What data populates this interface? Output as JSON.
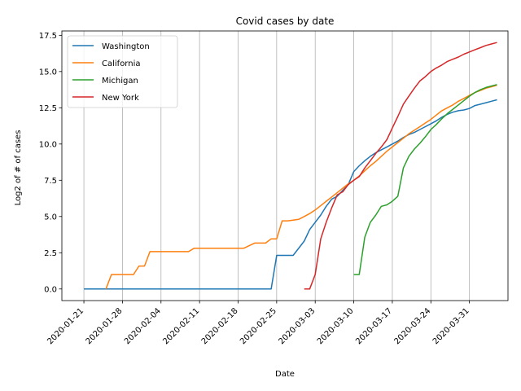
{
  "chart_data": {
    "type": "line",
    "title": "Covid cases by date",
    "xlabel": "Date",
    "ylabel": "Log2 of # of cases",
    "x_tick_labels": [
      "2020-01-21",
      "2020-01-28",
      "2020-02-04",
      "2020-02-11",
      "2020-02-18",
      "2020-02-25",
      "2020-03-03",
      "2020-03-10",
      "2020-03-17",
      "2020-03-24",
      "2020-03-31"
    ],
    "y_ticks": [
      0.0,
      2.5,
      5.0,
      7.5,
      10.0,
      12.5,
      15.0,
      17.5
    ],
    "y_tick_labels": [
      "0.0",
      "2.5",
      "5.0",
      "7.5",
      "10.0",
      "12.5",
      "15.0",
      "17.5"
    ],
    "xlim": [
      "2020-01-17",
      "2020-04-07"
    ],
    "ylim": [
      -0.8,
      17.8
    ],
    "grid": "vertical",
    "legend_position": "top-left",
    "series": [
      {
        "name": "Washington",
        "color": "#1f77b4",
        "points": [
          [
            "2020-01-21",
            0
          ],
          [
            "2020-02-24",
            0
          ],
          [
            "2020-02-25",
            2.32
          ],
          [
            "2020-02-28",
            2.32
          ],
          [
            "2020-03-01",
            3.3
          ],
          [
            "2020-03-02",
            4.1
          ],
          [
            "2020-03-03",
            4.6
          ],
          [
            "2020-03-04",
            5.1
          ],
          [
            "2020-03-05",
            5.7
          ],
          [
            "2020-03-06",
            6.2
          ],
          [
            "2020-03-07",
            6.4
          ],
          [
            "2020-03-08",
            6.8
          ],
          [
            "2020-03-09",
            7.2
          ],
          [
            "2020-03-10",
            8.1
          ],
          [
            "2020-03-11",
            8.5
          ],
          [
            "2020-03-12",
            8.85
          ],
          [
            "2020-03-13",
            9.15
          ],
          [
            "2020-03-14",
            9.4
          ],
          [
            "2020-03-15",
            9.6
          ],
          [
            "2020-03-16",
            9.8
          ],
          [
            "2020-03-17",
            10.0
          ],
          [
            "2020-03-18",
            10.2
          ],
          [
            "2020-03-19",
            10.45
          ],
          [
            "2020-03-20",
            10.65
          ],
          [
            "2020-03-21",
            10.8
          ],
          [
            "2020-03-22",
            11.0
          ],
          [
            "2020-03-23",
            11.2
          ],
          [
            "2020-03-24",
            11.4
          ],
          [
            "2020-03-25",
            11.6
          ],
          [
            "2020-03-26",
            11.85
          ],
          [
            "2020-03-27",
            12.05
          ],
          [
            "2020-03-28",
            12.2
          ],
          [
            "2020-03-29",
            12.3
          ],
          [
            "2020-03-30",
            12.35
          ],
          [
            "2020-03-31",
            12.45
          ],
          [
            "2020-04-01",
            12.65
          ],
          [
            "2020-04-02",
            12.75
          ],
          [
            "2020-04-03",
            12.85
          ],
          [
            "2020-04-04",
            12.95
          ],
          [
            "2020-04-05",
            13.05
          ]
        ]
      },
      {
        "name": "California",
        "color": "#ff7f0e",
        "points": [
          [
            "2020-01-25",
            0
          ],
          [
            "2020-01-26",
            1
          ],
          [
            "2020-01-30",
            1
          ],
          [
            "2020-01-31",
            1.58
          ],
          [
            "2020-02-01",
            1.58
          ],
          [
            "2020-02-02",
            2.58
          ],
          [
            "2020-02-09",
            2.58
          ],
          [
            "2020-02-10",
            2.81
          ],
          [
            "2020-02-19",
            2.81
          ],
          [
            "2020-02-21",
            3.17
          ],
          [
            "2020-02-23",
            3.17
          ],
          [
            "2020-02-24",
            3.46
          ],
          [
            "2020-02-25",
            3.46
          ],
          [
            "2020-02-26",
            4.7
          ],
          [
            "2020-02-27",
            4.7
          ],
          [
            "2020-02-28",
            4.75
          ],
          [
            "2020-02-29",
            4.8
          ],
          [
            "2020-03-01",
            5.0
          ],
          [
            "2020-03-02",
            5.2
          ],
          [
            "2020-03-03",
            5.45
          ],
          [
            "2020-03-04",
            5.75
          ],
          [
            "2020-03-05",
            6.05
          ],
          [
            "2020-03-06",
            6.35
          ],
          [
            "2020-03-07",
            6.65
          ],
          [
            "2020-03-08",
            6.95
          ],
          [
            "2020-03-09",
            7.25
          ],
          [
            "2020-03-10",
            7.5
          ],
          [
            "2020-03-11",
            7.8
          ],
          [
            "2020-03-12",
            8.15
          ],
          [
            "2020-03-13",
            8.5
          ],
          [
            "2020-03-14",
            8.8
          ],
          [
            "2020-03-15",
            9.15
          ],
          [
            "2020-03-16",
            9.5
          ],
          [
            "2020-03-17",
            9.8
          ],
          [
            "2020-03-18",
            10.1
          ],
          [
            "2020-03-19",
            10.4
          ],
          [
            "2020-03-20",
            10.7
          ],
          [
            "2020-03-21",
            10.95
          ],
          [
            "2020-03-22",
            11.2
          ],
          [
            "2020-03-23",
            11.45
          ],
          [
            "2020-03-24",
            11.7
          ],
          [
            "2020-03-25",
            12.0
          ],
          [
            "2020-03-26",
            12.3
          ],
          [
            "2020-03-27",
            12.5
          ],
          [
            "2020-03-28",
            12.7
          ],
          [
            "2020-03-29",
            12.95
          ],
          [
            "2020-03-30",
            13.15
          ],
          [
            "2020-03-31",
            13.35
          ],
          [
            "2020-04-01",
            13.55
          ],
          [
            "2020-04-02",
            13.7
          ],
          [
            "2020-04-03",
            13.85
          ],
          [
            "2020-04-04",
            13.95
          ],
          [
            "2020-04-05",
            14.05
          ]
        ]
      },
      {
        "name": "Michigan",
        "color": "#2ca02c",
        "points": [
          [
            "2020-03-10",
            1
          ],
          [
            "2020-03-11",
            1
          ],
          [
            "2020-03-12",
            3.58
          ],
          [
            "2020-03-13",
            4.6
          ],
          [
            "2020-03-14",
            5.1
          ],
          [
            "2020-03-15",
            5.7
          ],
          [
            "2020-03-16",
            5.8
          ],
          [
            "2020-03-17",
            6.05
          ],
          [
            "2020-03-18",
            6.4
          ],
          [
            "2020-03-19",
            8.35
          ],
          [
            "2020-03-20",
            9.15
          ],
          [
            "2020-03-21",
            9.65
          ],
          [
            "2020-03-22",
            10.05
          ],
          [
            "2020-03-23",
            10.5
          ],
          [
            "2020-03-24",
            11.0
          ],
          [
            "2020-03-25",
            11.35
          ],
          [
            "2020-03-26",
            11.75
          ],
          [
            "2020-03-27",
            12.1
          ],
          [
            "2020-03-28",
            12.4
          ],
          [
            "2020-03-29",
            12.7
          ],
          [
            "2020-03-30",
            13.0
          ],
          [
            "2020-03-31",
            13.3
          ],
          [
            "2020-04-01",
            13.55
          ],
          [
            "2020-04-02",
            13.75
          ],
          [
            "2020-04-03",
            13.9
          ],
          [
            "2020-04-04",
            14.0
          ],
          [
            "2020-04-05",
            14.1
          ]
        ]
      },
      {
        "name": "New York",
        "color": "#d62728",
        "points": [
          [
            "2020-03-01",
            0
          ],
          [
            "2020-03-02",
            0
          ],
          [
            "2020-03-03",
            1.0
          ],
          [
            "2020-03-04",
            3.46
          ],
          [
            "2020-03-05",
            4.6
          ],
          [
            "2020-03-06",
            5.6
          ],
          [
            "2020-03-07",
            6.5
          ],
          [
            "2020-03-08",
            6.7
          ],
          [
            "2020-03-09",
            7.2
          ],
          [
            "2020-03-10",
            7.5
          ],
          [
            "2020-03-11",
            7.75
          ],
          [
            "2020-03-12",
            8.35
          ],
          [
            "2020-03-13",
            8.85
          ],
          [
            "2020-03-14",
            9.35
          ],
          [
            "2020-03-15",
            9.8
          ],
          [
            "2020-03-16",
            10.3
          ],
          [
            "2020-03-17",
            11.1
          ],
          [
            "2020-03-18",
            11.9
          ],
          [
            "2020-03-19",
            12.75
          ],
          [
            "2020-03-20",
            13.3
          ],
          [
            "2020-03-21",
            13.85
          ],
          [
            "2020-03-22",
            14.35
          ],
          [
            "2020-03-23",
            14.65
          ],
          [
            "2020-03-24",
            15.0
          ],
          [
            "2020-03-25",
            15.25
          ],
          [
            "2020-03-26",
            15.45
          ],
          [
            "2020-03-27",
            15.7
          ],
          [
            "2020-03-28",
            15.85
          ],
          [
            "2020-03-29",
            16.0
          ],
          [
            "2020-03-30",
            16.2
          ],
          [
            "2020-03-31",
            16.35
          ],
          [
            "2020-04-01",
            16.5
          ],
          [
            "2020-04-02",
            16.65
          ],
          [
            "2020-04-03",
            16.8
          ],
          [
            "2020-04-04",
            16.9
          ],
          [
            "2020-04-05",
            17.0
          ]
        ]
      }
    ]
  }
}
